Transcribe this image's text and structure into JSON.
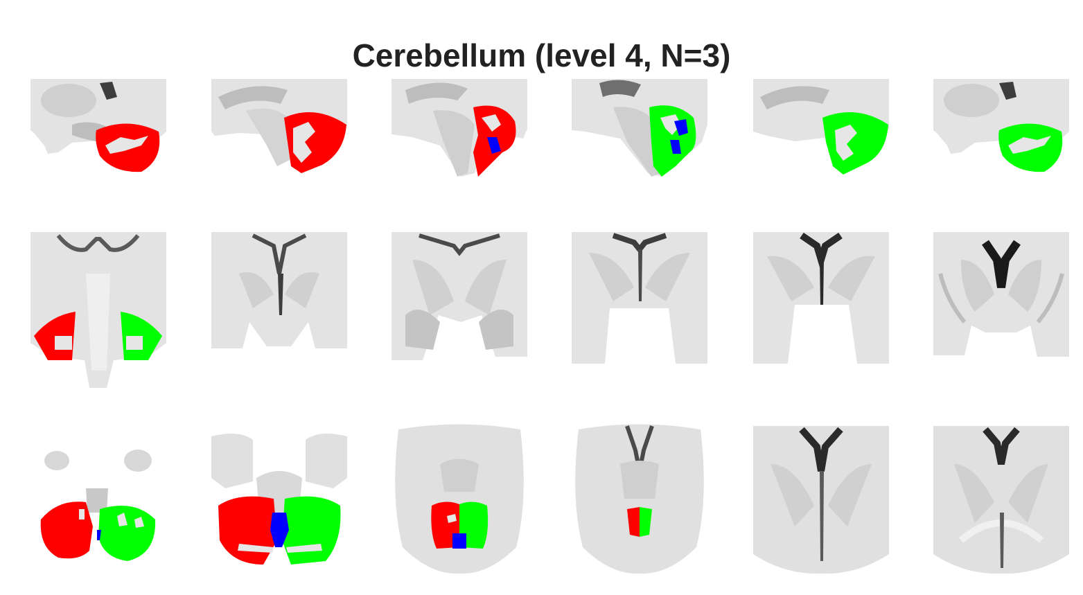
{
  "figure": {
    "title": "Cerebellum (level 4, N=3)"
  },
  "colors": {
    "region_1": "#ff0000",
    "region_2": "#00ff00",
    "region_3": "#0000ff",
    "background": "#ffffff",
    "brain_light": "#e6e6e6",
    "brain_mid": "#bdbdbd",
    "brain_dark": "#4a4a4a"
  },
  "grid": {
    "rows": [
      "sagittal",
      "coronal",
      "axial"
    ],
    "columns": 6
  },
  "panels": [
    {
      "view": "sagittal",
      "regions": [
        "region_1"
      ]
    },
    {
      "view": "sagittal",
      "regions": [
        "region_1"
      ]
    },
    {
      "view": "sagittal",
      "regions": [
        "region_1",
        "region_3"
      ]
    },
    {
      "view": "sagittal",
      "regions": [
        "region_2",
        "region_3"
      ]
    },
    {
      "view": "sagittal",
      "regions": [
        "region_2"
      ]
    },
    {
      "view": "sagittal",
      "regions": [
        "region_2"
      ]
    },
    {
      "view": "coronal",
      "regions": [
        "region_1",
        "region_2"
      ]
    },
    {
      "view": "coronal",
      "regions": []
    },
    {
      "view": "coronal",
      "regions": []
    },
    {
      "view": "coronal",
      "regions": []
    },
    {
      "view": "coronal",
      "regions": []
    },
    {
      "view": "coronal",
      "regions": []
    },
    {
      "view": "axial",
      "regions": [
        "region_1",
        "region_2",
        "region_3"
      ]
    },
    {
      "view": "axial",
      "regions": [
        "region_1",
        "region_2",
        "region_3"
      ]
    },
    {
      "view": "axial",
      "regions": [
        "region_1",
        "region_2",
        "region_3"
      ]
    },
    {
      "view": "axial",
      "regions": [
        "region_1",
        "region_2"
      ]
    },
    {
      "view": "axial",
      "regions": []
    },
    {
      "view": "axial",
      "regions": []
    }
  ]
}
